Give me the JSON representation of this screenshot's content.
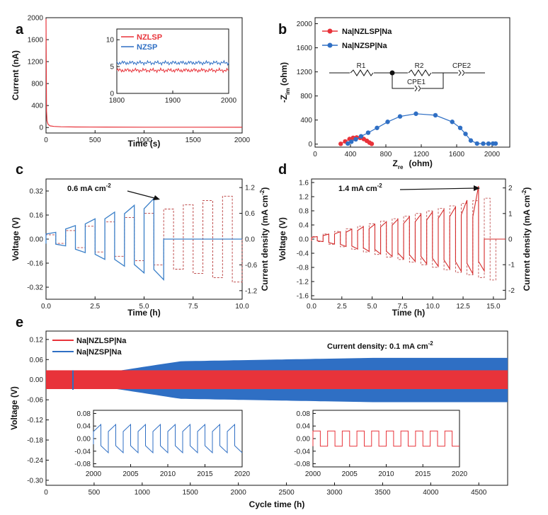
{
  "colors": {
    "red": "#e8333a",
    "blue": "#2f6fc4",
    "black": "#111111",
    "c_blue": "#3a7fc8",
    "d_red": "#d42a2a",
    "c_red": "#b83a3a"
  },
  "chart_data": [
    {
      "panel": "a",
      "type": "line",
      "xlabel": "Time (s)",
      "ylabel": "Current (nA)",
      "xlim": [
        0,
        2000
      ],
      "ylim": [
        -100,
        2000
      ],
      "xticks": [
        0,
        500,
        1000,
        1500,
        2000
      ],
      "yticks": [
        0,
        400,
        800,
        1200,
        1600,
        2000
      ],
      "series": [
        {
          "name": "NZLSP",
          "x": [
            0,
            5,
            10,
            20,
            40,
            80,
            150,
            300,
            600,
            1000,
            1500,
            2000
          ],
          "y": [
            1980,
            300,
            120,
            60,
            30,
            20,
            14,
            10,
            8,
            6,
            5,
            4
          ]
        }
      ],
      "inset": {
        "xlim": [
          1800,
          2000
        ],
        "ylim": [
          0,
          12
        ],
        "xticks": [
          1800,
          1900,
          2000
        ],
        "yticks": [
          0,
          5,
          10
        ],
        "series": [
          {
            "name": "NZLSP",
            "mean": 4.3
          },
          {
            "name": "NZSP",
            "mean": 5.7
          }
        ]
      }
    },
    {
      "panel": "b",
      "type": "scatter",
      "xlabel": "Z",
      "xlabel_sub": "re",
      "xlabel_unit": " (ohm)",
      "ylabel": "-Z",
      "ylabel_sub": "im",
      "ylabel_unit": " (ohm)",
      "xlim": [
        0,
        2200
      ],
      "ylim": [
        -50,
        2100
      ],
      "xticks": [
        0,
        400,
        800,
        1200,
        1600,
        2000
      ],
      "yticks": [
        0,
        400,
        800,
        1200,
        1600,
        2000
      ],
      "series": [
        {
          "name": "Na|NZLSP|Na",
          "x": [
            290,
            340,
            390,
            430,
            470,
            510,
            550,
            585,
            615,
            640
          ],
          "y": [
            5,
            45,
            85,
            105,
            110,
            105,
            85,
            55,
            25,
            5
          ]
        },
        {
          "name": "Na|NZSP|Na",
          "x": [
            370,
            410,
            460,
            520,
            600,
            700,
            820,
            960,
            1140,
            1360,
            1550,
            1640,
            1700,
            1760,
            1830,
            1900,
            1960,
            2010,
            2040
          ],
          "y": [
            10,
            40,
            80,
            130,
            190,
            270,
            370,
            460,
            505,
            480,
            370,
            270,
            170,
            60,
            10,
            8,
            8,
            10,
            10
          ]
        }
      ],
      "circuit": {
        "r1": "R1",
        "r2": "R2",
        "cpe1": "CPE1",
        "cpe2": "CPE2"
      }
    },
    {
      "panel": "c",
      "type": "line",
      "xlabel": "Time (h)",
      "ylabel": "Voltage (V)",
      "y2label": "Current density (mA cm",
      "y2sup": "-2",
      "y2close": ")",
      "xlim": [
        0,
        10
      ],
      "ylim": [
        -0.4,
        0.4
      ],
      "y2lim": [
        -1.4,
        1.4
      ],
      "xticks": [
        0.0,
        2.5,
        5.0,
        7.5,
        10.0
      ],
      "xticklabels": [
        "0.0",
        "2.5",
        "5.0",
        "7.5",
        "10.0"
      ],
      "yticks": [
        -0.32,
        -0.16,
        0.0,
        0.16,
        0.32
      ],
      "yticklabels": [
        "-0.32",
        "-0.16",
        "0.00",
        "0.16",
        "0.32"
      ],
      "y2ticks": [
        -1.2,
        -0.6,
        0.0,
        0.6,
        1.2
      ],
      "y2ticklabels": [
        "-1.2",
        "-0.6",
        "0.0",
        "0.6",
        "1.2"
      ],
      "step_amplitudes_voltage": [
        0.045,
        0.09,
        0.135,
        0.18,
        0.225,
        0.27
      ],
      "current_steps_mA": [
        0.1,
        0.2,
        0.3,
        0.4,
        0.5,
        0.6,
        0.7,
        0.8,
        0.9,
        1.0
      ],
      "annotation": "0.6 mA cm",
      "annotation_sup": "-2"
    },
    {
      "panel": "d",
      "type": "line",
      "xlabel": "Time (h)",
      "ylabel": "Voltage (V)",
      "y2label": "Current density (mA cm",
      "y2sup": "-2",
      "y2close": ")",
      "xlim": [
        0,
        16
      ],
      "ylim": [
        -1.7,
        1.7
      ],
      "y2lim": [
        -2.35,
        2.35
      ],
      "xticks": [
        0.0,
        2.5,
        5.0,
        7.5,
        10.0,
        12.5,
        15.0
      ],
      "xticklabels": [
        "0.0",
        "2.5",
        "5.0",
        "7.5",
        "10.0",
        "12.5",
        "15.0"
      ],
      "yticks": [
        -1.6,
        -1.2,
        -0.8,
        -0.4,
        0.0,
        0.4,
        0.8,
        1.2,
        1.6
      ],
      "yticklabels": [
        "-1.6",
        "-1.2",
        "-0.8",
        "-0.4",
        "0.0",
        "0.4",
        "0.8",
        "1.2",
        "1.6"
      ],
      "y2ticks": [
        -2,
        -1,
        0,
        1,
        2
      ],
      "y2ticklabels": [
        "-2",
        "-1",
        "0",
        "1",
        "2"
      ],
      "annotation": "1.4 mA cm",
      "annotation_sup": "-2"
    },
    {
      "panel": "e",
      "type": "area",
      "xlabel": "Cycle time (h)",
      "ylabel": "Voltage (V)",
      "xlim": [
        0,
        4800
      ],
      "ylim": [
        -0.315,
        0.145
      ],
      "xticks": [
        0,
        500,
        1000,
        1500,
        2000,
        2500,
        3000,
        3500,
        4000,
        4500
      ],
      "yticks": [
        -0.3,
        -0.24,
        -0.18,
        -0.12,
        -0.06,
        0.0,
        0.06,
        0.12
      ],
      "yticklabels": [
        "-0.30",
        "-0.24",
        "-0.18",
        "-0.12",
        "-0.06",
        "0.00",
        "0.06",
        "0.12"
      ],
      "series": [
        {
          "name": "Na|NZLSP|Na",
          "envelope": 0.028
        },
        {
          "name": "Na|NZSP|Na",
          "envelope_start": 0.02,
          "envelope_end": 0.065
        }
      ],
      "annotation": "Current density: 0.1 mA cm",
      "annotation_sup": "-2",
      "insets": [
        {
          "series": "Na|NZSP|Na",
          "xlim": [
            2000,
            2020
          ],
          "xticks": [
            2000,
            2005,
            2010,
            2015,
            2020
          ],
          "ylim": [
            -0.09,
            0.09
          ],
          "yticks": [
            -0.08,
            -0.04,
            0.0,
            0.04,
            0.08
          ],
          "yticklabels": [
            "-0.08",
            "-0.04",
            "0.00",
            "0.04",
            "0.08"
          ],
          "amplitude": 0.045
        },
        {
          "series": "Na|NZLSP|Na",
          "xlim": [
            2000,
            2020
          ],
          "xticks": [
            2000,
            2005,
            2010,
            2015,
            2020
          ],
          "ylim": [
            -0.09,
            0.09
          ],
          "yticks": [
            -0.08,
            -0.04,
            0.0,
            0.04,
            0.08
          ],
          "yticklabels": [
            "-0.08",
            "-0.04",
            "0.00",
            "0.04",
            "0.08"
          ],
          "amplitude": 0.024
        }
      ]
    }
  ],
  "panel_labels": [
    "a",
    "b",
    "c",
    "d",
    "e"
  ]
}
